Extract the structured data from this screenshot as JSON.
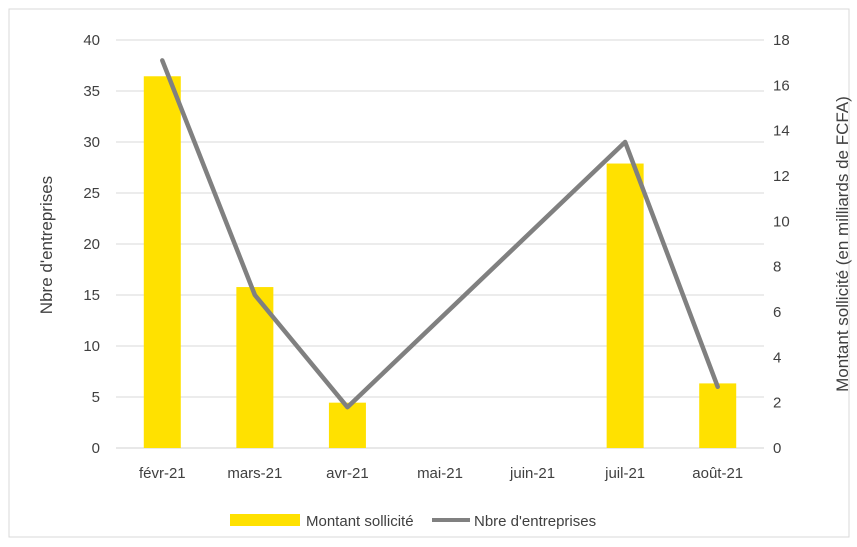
{
  "chart_data": {
    "type": "bar",
    "categories": [
      "févr-21",
      "mars-21",
      "avr-21",
      "mai-21",
      "juin-21",
      "juil-21",
      "août-21"
    ],
    "series": [
      {
        "name": "Montant sollicité",
        "type": "bar",
        "axis": "right",
        "values": [
          16.4,
          7.1,
          2.0,
          null,
          null,
          12.55,
          2.85
        ],
        "color": "#FFE100"
      },
      {
        "name": "Nbre d'entreprises",
        "type": "line",
        "axis": "left",
        "values": [
          38,
          15,
          4,
          null,
          null,
          30,
          6
        ],
        "color": "#808080"
      }
    ],
    "y_left": {
      "label": "Nbre d'entreprises",
      "ylim": [
        0,
        40
      ],
      "ticks": [
        "0",
        "5",
        "10",
        "15",
        "20",
        "25",
        "30",
        "35",
        "40"
      ]
    },
    "y_right": {
      "label": "Montant sollicité (en milliards de FCFA)",
      "ylim": [
        0,
        18
      ],
      "ticks": [
        "0",
        "2",
        "4",
        "6",
        "8",
        "10",
        "12",
        "14",
        "16",
        "18"
      ]
    },
    "grid": true,
    "legend_position": "bottom"
  }
}
